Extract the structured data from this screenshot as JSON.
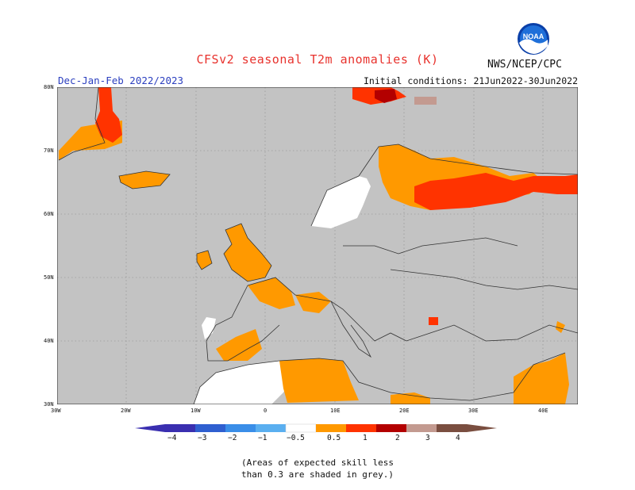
{
  "title": "CFSv2 seasonal T2m anomalies (K)",
  "season": "Dec-Jan-Feb 2022/2023",
  "initial_conditions": "Initial conditions: 21Jun2022-30Jun2022",
  "agency": "NWS/NCEP/CPC",
  "logo_text": "NOAA",
  "map": {
    "region": "Europe",
    "lat_labels": [
      "80N",
      "70N",
      "60N",
      "50N",
      "40N",
      "30N"
    ],
    "lon_labels": [
      "30W",
      "20W",
      "10W",
      "0",
      "10E",
      "20E",
      "30E",
      "40E"
    ],
    "colors": {
      "skill_grey": "#c3c3c3",
      "anom_0_5_to_1": "#ff9900",
      "anom_1_to_2": "#ff3300",
      "anom_2_to_3": "#b30000",
      "anom_3_to_4": "#c39a90",
      "neutral": "#ffffff",
      "border": "#333333"
    }
  },
  "colorbar": {
    "labels": [
      "−4",
      "−3",
      "−2",
      "−1",
      "−0.5",
      "0.5",
      "1",
      "2",
      "3",
      "4"
    ],
    "colors": [
      "#3a2fb0",
      "#2f5fd0",
      "#3a8ee8",
      "#5aaff0",
      "#8cc8f4",
      "#ffffff",
      "#ff9900",
      "#ff3300",
      "#b30000",
      "#c39a90",
      "#7a4e40"
    ]
  },
  "note": {
    "line1": "(Areas of expected skill less",
    "line2": "than 0.3 are shaded in grey.)"
  }
}
